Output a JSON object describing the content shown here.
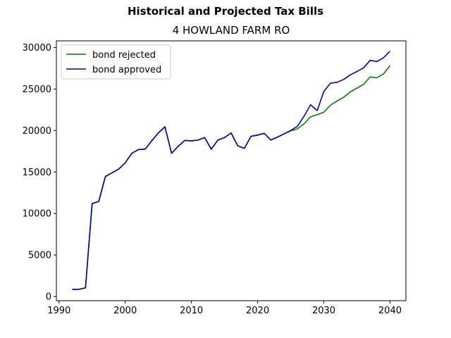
{
  "figure": {
    "suptitle": "Historical and Projected Tax Bills",
    "title": "4 HOWLAND FARM RO"
  },
  "chart_data": {
    "type": "line",
    "title": "4 HOWLAND FARM RO",
    "xlabel": "",
    "ylabel": "",
    "xlim": [
      1989.6,
      2042.4
    ],
    "ylim": [
      -500,
      30800
    ],
    "xticks": [
      1990,
      2000,
      2010,
      2020,
      2030,
      2040
    ],
    "yticks": [
      0,
      5000,
      10000,
      15000,
      20000,
      25000,
      30000
    ],
    "grid": false,
    "legend_position": "top-left",
    "series": [
      {
        "name": "bond rejected",
        "color": "#008000",
        "x": [
          1992,
          1993,
          1994,
          1995,
          1996,
          1997,
          1998,
          1999,
          2000,
          2001,
          2002,
          2003,
          2004,
          2005,
          2006,
          2007,
          2008,
          2009,
          2010,
          2011,
          2012,
          2013,
          2014,
          2015,
          2016,
          2017,
          2018,
          2019,
          2020,
          2021,
          2022,
          2023,
          2024,
          2025,
          2026,
          2027,
          2028,
          2029,
          2030,
          2031,
          2032,
          2033,
          2034,
          2035,
          2036,
          2037,
          2038,
          2039,
          2040
        ],
        "values": [
          850,
          870,
          1050,
          11200,
          11450,
          14450,
          14900,
          15350,
          16100,
          17250,
          17700,
          17750,
          18750,
          19700,
          20450,
          17250,
          18100,
          18800,
          18750,
          18850,
          19150,
          17750,
          18850,
          19150,
          19700,
          18150,
          17850,
          19300,
          19450,
          19650,
          18850,
          19200,
          19600,
          19950,
          20200,
          20800,
          21650,
          21900,
          22200,
          23050,
          23550,
          24000,
          24650,
          25100,
          25550,
          26450,
          26350,
          26800,
          27800
        ]
      },
      {
        "name": "bond approved",
        "color": "#0000cc",
        "x": [
          1992,
          1993,
          1994,
          1995,
          1996,
          1997,
          1998,
          1999,
          2000,
          2001,
          2002,
          2003,
          2004,
          2005,
          2006,
          2007,
          2008,
          2009,
          2010,
          2011,
          2012,
          2013,
          2014,
          2015,
          2016,
          2017,
          2018,
          2019,
          2020,
          2021,
          2022,
          2023,
          2024,
          2025,
          2026,
          2027,
          2028,
          2029,
          2030,
          2031,
          2032,
          2033,
          2034,
          2035,
          2036,
          2037,
          2038,
          2039,
          2040
        ],
        "values": [
          850,
          870,
          1050,
          11200,
          11450,
          14450,
          14900,
          15350,
          16100,
          17250,
          17700,
          17750,
          18750,
          19700,
          20450,
          17250,
          18100,
          18800,
          18750,
          18850,
          19150,
          17750,
          18850,
          19150,
          19700,
          18150,
          17850,
          19300,
          19450,
          19650,
          18850,
          19200,
          19600,
          20000,
          20500,
          21700,
          23100,
          22400,
          24700,
          25700,
          25800,
          26150,
          26700,
          27100,
          27550,
          28450,
          28300,
          28750,
          29550
        ]
      }
    ]
  }
}
